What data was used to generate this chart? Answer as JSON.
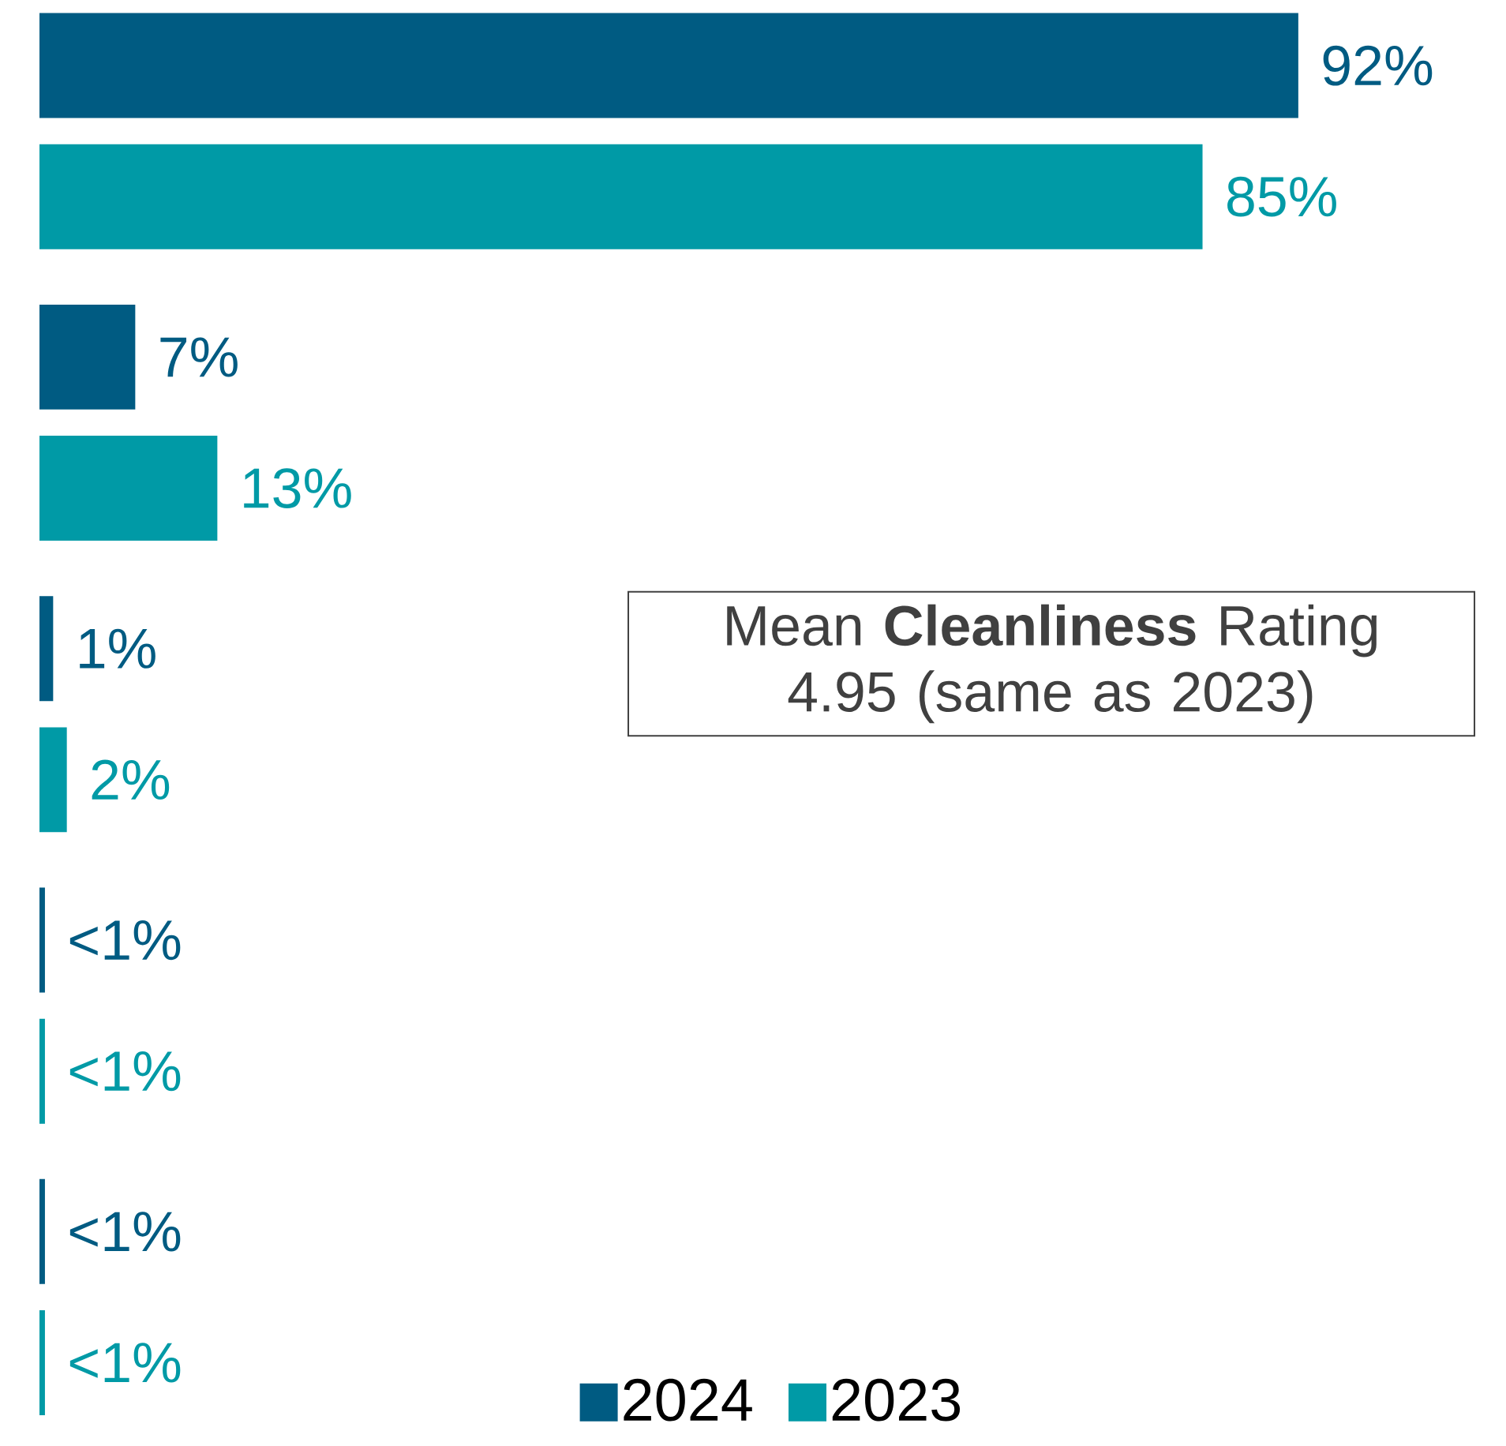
{
  "chart_data": {
    "type": "bar",
    "orientation": "horizontal",
    "categories": [
      null,
      null,
      null,
      null,
      null
    ],
    "series": [
      {
        "name": "2024",
        "color": "#005b82",
        "values": [
          92,
          7,
          1,
          0.4,
          0.4
        ],
        "value_labels": [
          "92%",
          "7%",
          "1%",
          "<1%",
          "<1%"
        ]
      },
      {
        "name": "2023",
        "color": "#009aa6",
        "values": [
          85,
          13,
          2,
          0.4,
          0.4
        ],
        "value_labels": [
          "85%",
          "13%",
          "2%",
          "<1%",
          "<1%"
        ]
      }
    ],
    "legend": "bottom",
    "annotations": [
      "Mean **Cleanliness** Rating 4.95 (same as 2023)"
    ]
  }
}
